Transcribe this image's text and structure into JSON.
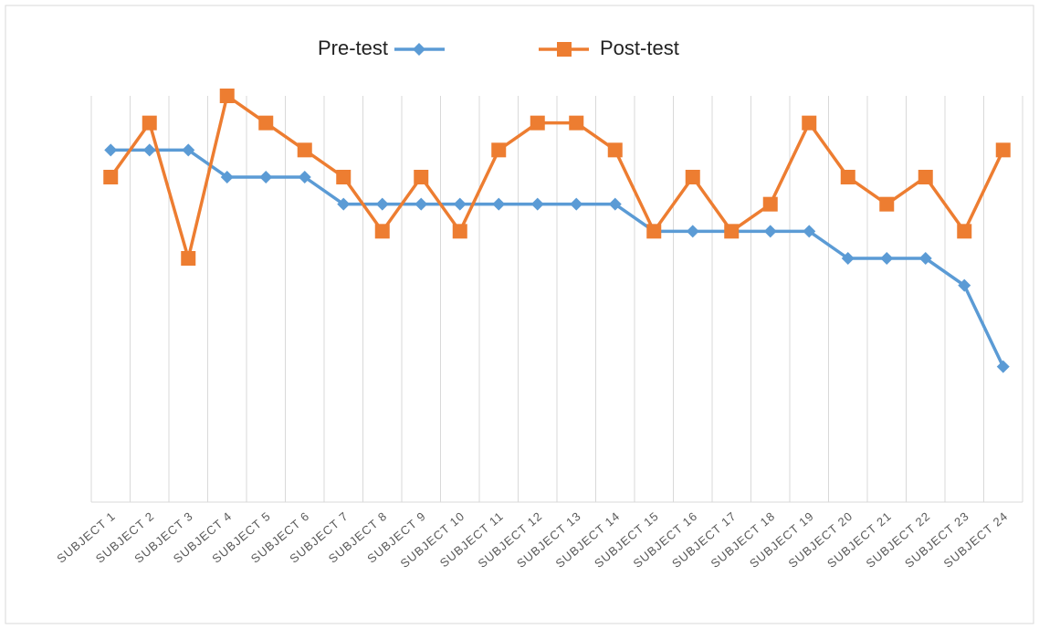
{
  "chart_data": {
    "type": "line",
    "categories": [
      "SUBJECT 1",
      "SUBJECT 2",
      "SUBJECT 3",
      "SUBJECT 4",
      "SUBJECT 5",
      "SUBJECT 6",
      "SUBJECT 7",
      "SUBJECT 8",
      "SUBJECT 9",
      "SUBJECT 10",
      "SUBJECT 11",
      "SUBJECT 12",
      "SUBJECT 13",
      "SUBJECT 14",
      "SUBJECT 15",
      "SUBJECT 16",
      "SUBJECT 17",
      "SUBJECT 18",
      "SUBJECT 19",
      "SUBJECT 20",
      "SUBJECT 21",
      "SUBJECT 22",
      "SUBJECT 23",
      "SUBJECT 24"
    ],
    "series": [
      {
        "name": "Pre-test",
        "color": "#5b9bd5",
        "marker": "diamond",
        "values": [
          13,
          13,
          13,
          12,
          12,
          12,
          11,
          11,
          11,
          11,
          11,
          11,
          11,
          11,
          10,
          10,
          10,
          10,
          10,
          9,
          9,
          9,
          8,
          5
        ]
      },
      {
        "name": "Post-test",
        "color": "#ed7d31",
        "marker": "square",
        "values": [
          12,
          14,
          9,
          15,
          14,
          13,
          12,
          10,
          12,
          10,
          13,
          14,
          14,
          13,
          10,
          12,
          10,
          11,
          14,
          12,
          11,
          12,
          10,
          13
        ]
      }
    ],
    "ylim": [
      0,
      15
    ],
    "legend": "top",
    "grid": "vertical"
  }
}
